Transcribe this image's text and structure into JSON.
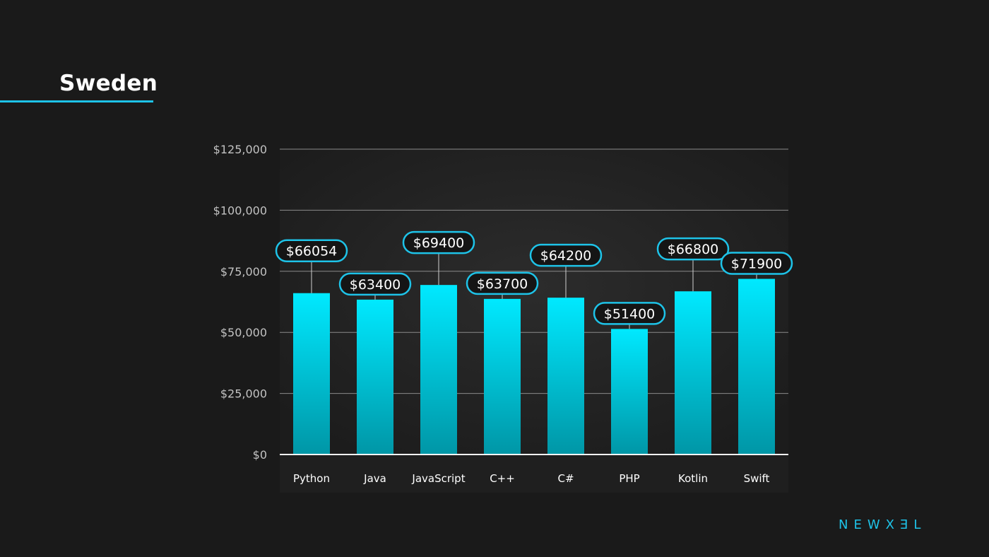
{
  "page": {
    "title": "Sweden",
    "brand": "NEWXƎL"
  },
  "colors": {
    "background": "#1a1a1a",
    "accent": "#1ec3e8",
    "bar_top": "#00e9ff",
    "bar_bottom": "#0096a6",
    "label_border": "#1ec3e8",
    "label_fill": "#151515"
  },
  "chart_data": {
    "type": "bar",
    "title": "",
    "xlabel": "",
    "ylabel": "",
    "categories": [
      "Python",
      "Java",
      "JavaScript",
      "C++",
      "C#",
      "PHP",
      "Kotlin",
      "Swift"
    ],
    "values": [
      66054,
      63400,
      69400,
      63700,
      64200,
      51400,
      66800,
      71900
    ],
    "data_labels": [
      "$66054",
      "$63400",
      "$69400",
      "$63700",
      "$64200",
      "$51400",
      "$66800",
      "$71900"
    ],
    "ylim": [
      0,
      125000
    ],
    "yticks": [
      0,
      25000,
      50000,
      75000,
      100000,
      125000
    ],
    "ytick_labels": [
      "$0",
      "$25,000",
      "$50,000",
      "$75,000",
      "$100,000",
      "$125,000"
    ],
    "grid": true,
    "legend": "none"
  }
}
